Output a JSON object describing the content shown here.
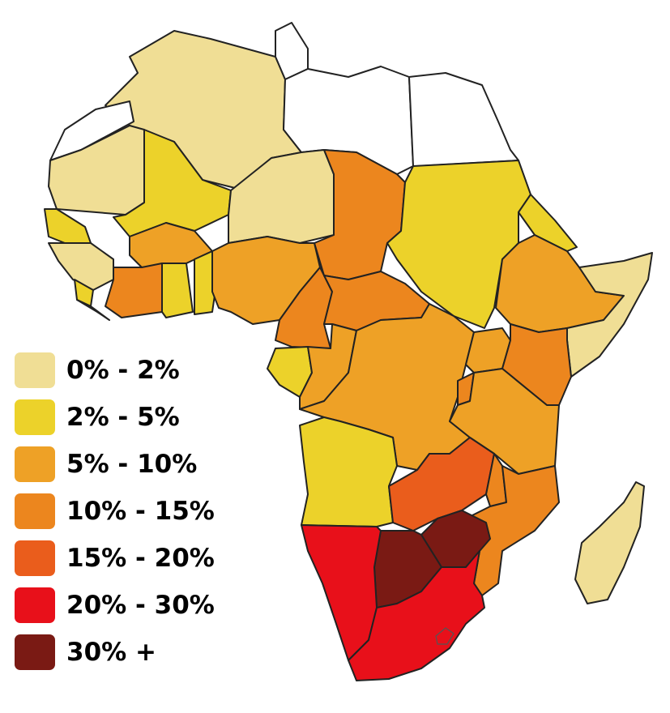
{
  "legend": {
    "items": [
      {
        "label": "0% - 2%",
        "color": "#f0de95"
      },
      {
        "label": "2% - 5%",
        "color": "#ecd22a"
      },
      {
        "label": "5% - 10%",
        "color": "#eea126"
      },
      {
        "label": "10% - 15%",
        "color": "#ec861e"
      },
      {
        "label": "15% - 20%",
        "color": "#ea5d1c"
      },
      {
        "label": "20% - 30%",
        "color": "#e8101a"
      },
      {
        "label": "30% +",
        "color": "#7a1a14"
      }
    ]
  },
  "no_data_color": "#ffffff"
}
